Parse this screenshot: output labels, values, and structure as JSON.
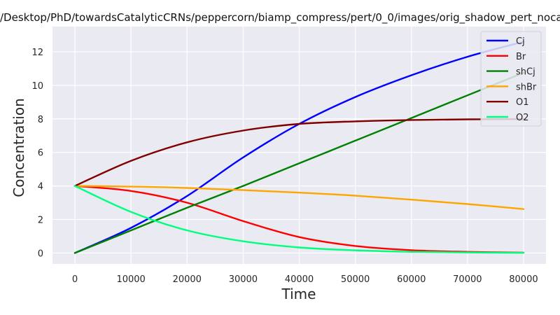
{
  "chart_data": {
    "type": "line",
    "title": "/Desktop/PhD/towardsCatalyticCRNs/peppercorn/biamp_compress/pert/0_0/images/orig_shadow_pert_noca",
    "xlabel": "Time",
    "ylabel": "Concentration",
    "xlim": [
      -4000,
      84000
    ],
    "ylim": [
      -0.65,
      13.5
    ],
    "xticks": [
      0,
      10000,
      20000,
      30000,
      40000,
      50000,
      60000,
      70000,
      80000
    ],
    "xtick_labels": [
      "0",
      "10000",
      "20000",
      "30000",
      "40000",
      "50000",
      "60000",
      "70000",
      "80000"
    ],
    "yticks": [
      0,
      2,
      4,
      6,
      8,
      10,
      12
    ],
    "ytick_labels": [
      "0",
      "2",
      "4",
      "6",
      "8",
      "10",
      "12"
    ],
    "grid": true,
    "legend_position": "top-right",
    "x": [
      0,
      10000,
      20000,
      30000,
      40000,
      50000,
      60000,
      70000,
      80000
    ],
    "series": [
      {
        "name": "Cj",
        "color": "#0000ff",
        "values": [
          0,
          1.5,
          3.4,
          5.7,
          7.7,
          9.3,
          10.6,
          11.7,
          12.6
        ]
      },
      {
        "name": "Br",
        "color": "#ff0000",
        "values": [
          4,
          3.7,
          3.0,
          1.9,
          0.95,
          0.42,
          0.17,
          0.07,
          0.02
        ]
      },
      {
        "name": "shCj",
        "color": "#008000",
        "values": [
          0,
          1.35,
          2.7,
          4.0,
          5.35,
          6.7,
          8.05,
          9.4,
          10.75
        ]
      },
      {
        "name": "shBr",
        "color": "#ffa500",
        "values": [
          4,
          3.96,
          3.88,
          3.75,
          3.6,
          3.42,
          3.18,
          2.92,
          2.62
        ]
      },
      {
        "name": "O1",
        "color": "#800000",
        "values": [
          4,
          5.5,
          6.6,
          7.3,
          7.7,
          7.85,
          7.93,
          7.97,
          7.98
        ]
      },
      {
        "name": "O2",
        "color": "#00ff7f",
        "values": [
          4,
          2.45,
          1.35,
          0.7,
          0.33,
          0.16,
          0.07,
          0.03,
          0.01
        ]
      }
    ]
  }
}
